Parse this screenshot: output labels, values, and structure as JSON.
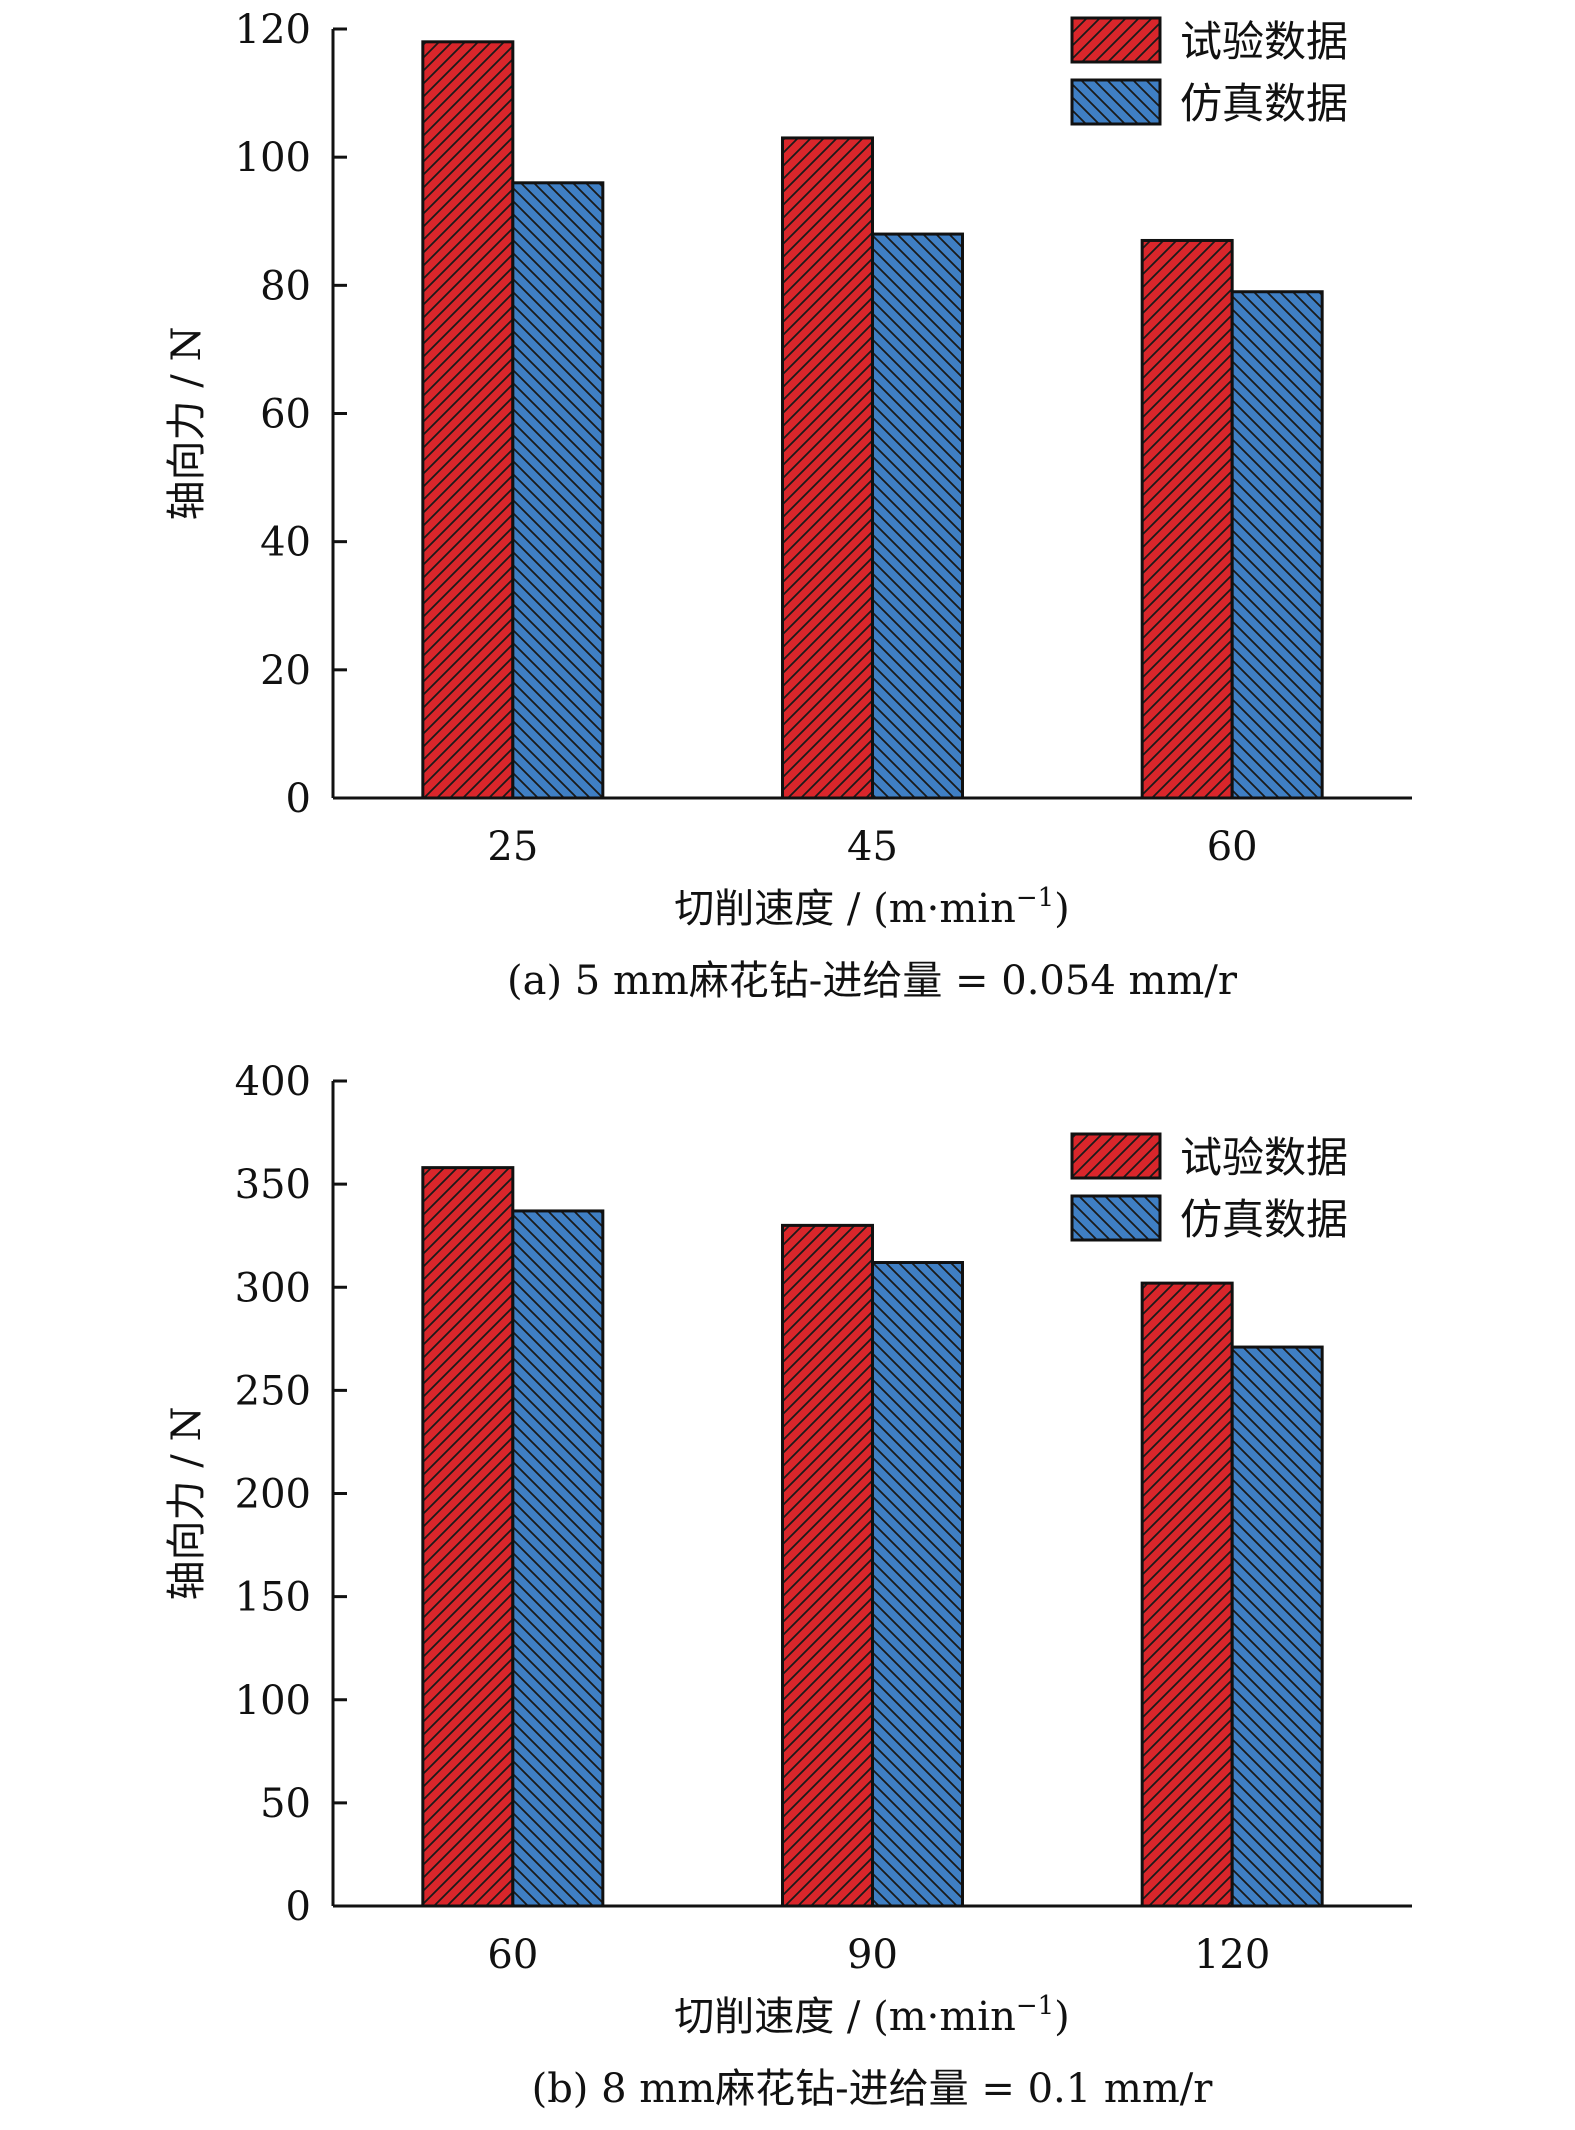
{
  "chart_data": [
    {
      "type": "bar",
      "panel": "a",
      "caption": "(a) 5 mm麻花钻-进给量 = 0.054 mm/r",
      "xlabel_main": "切削速度 / (m·min",
      "xlabel_sup": "−1",
      "xlabel_close": ")",
      "ylabel": "轴向力 / N",
      "categories": [
        "25",
        "45",
        "60"
      ],
      "ylim": [
        0,
        120
      ],
      "yticks": [
        "0",
        "20",
        "40",
        "60",
        "80",
        "100",
        "120"
      ],
      "legend_position": "top-right",
      "series": [
        {
          "name": "试验数据",
          "values": [
            118,
            103,
            87
          ]
        },
        {
          "name": "仿真数据",
          "values": [
            96,
            88,
            79
          ]
        }
      ],
      "grid": false
    },
    {
      "type": "bar",
      "panel": "b",
      "caption": "(b) 8 mm麻花钻-进给量 = 0.1 mm/r",
      "xlabel_main": "切削速度 / (m·min",
      "xlabel_sup": "−1",
      "xlabel_close": ")",
      "ylabel": "轴向力 / N",
      "categories": [
        "60",
        "90",
        "120"
      ],
      "ylim": [
        0,
        400
      ],
      "yticks": [
        "0",
        "50",
        "100",
        "150",
        "200",
        "250",
        "300",
        "350",
        "400"
      ],
      "legend_position": "top-right",
      "series": [
        {
          "name": "试验数据",
          "values": [
            358,
            330,
            302
          ]
        },
        {
          "name": "仿真数据",
          "values": [
            337,
            312,
            271
          ]
        }
      ],
      "grid": false
    }
  ],
  "colors": {
    "series1": "#d9262b",
    "series2": "#3f7fc4",
    "axis": "#111111"
  }
}
